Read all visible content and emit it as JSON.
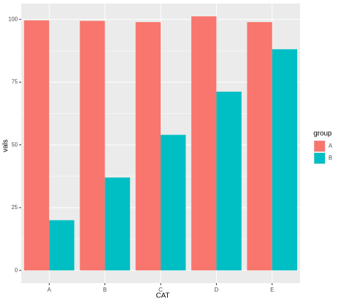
{
  "chart_data": {
    "type": "bar",
    "x_label": "CAT",
    "y_label": "vals",
    "categories": [
      "A",
      "B",
      "C",
      "D",
      "E"
    ],
    "series": [
      {
        "name": "A",
        "color": "#F8766D",
        "values": [
          99.6,
          99.4,
          98.9,
          101.2,
          98.9
        ]
      },
      {
        "name": "B",
        "color": "#00BFC4",
        "values": [
          20,
          37,
          54,
          71.2,
          88.1
        ]
      }
    ],
    "legend_title": "group",
    "legend": "right",
    "ylim": [
      -5.05,
      106.3
    ],
    "yticks": [
      0,
      25,
      50,
      75,
      100
    ],
    "grid": true
  }
}
